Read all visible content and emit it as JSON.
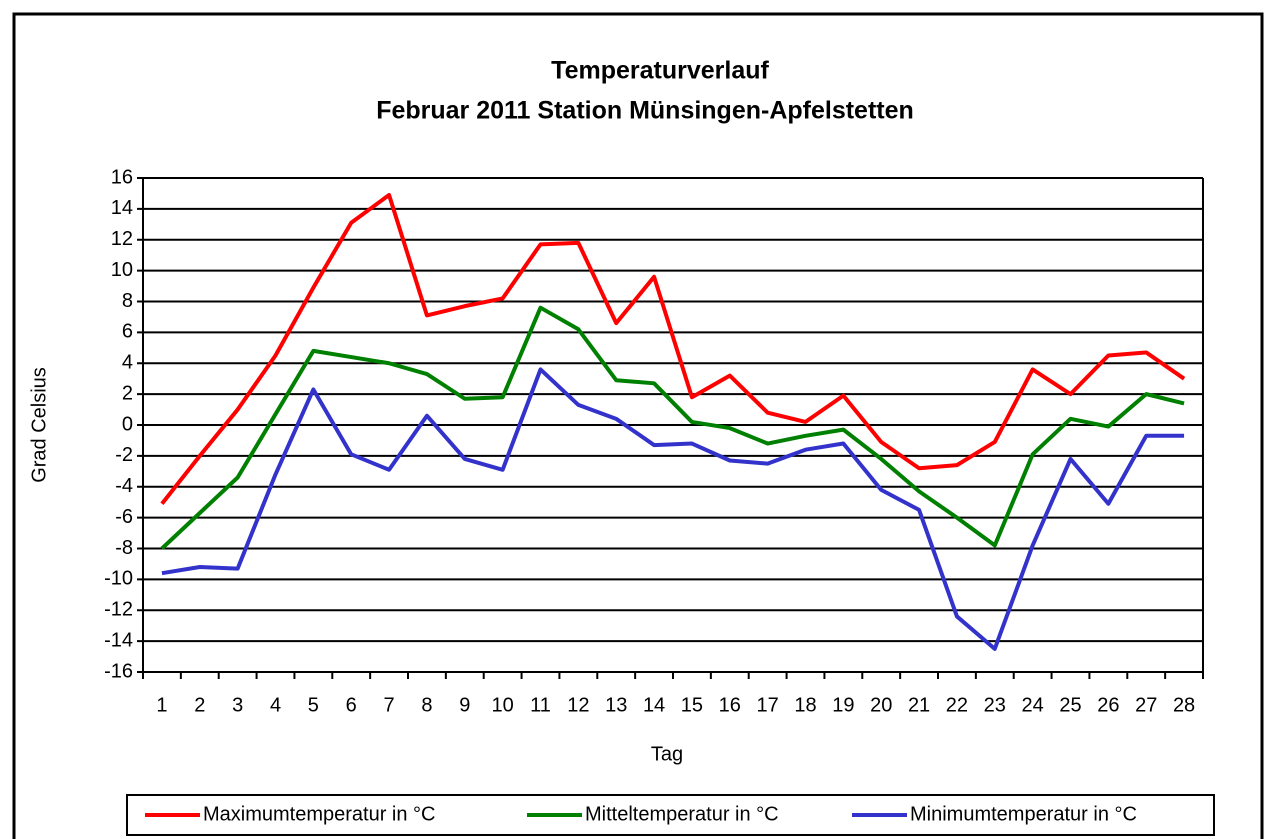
{
  "chart_data": {
    "type": "line",
    "title": "Temperaturverlauf",
    "subtitle": "Februar 2011 Station Münsingen-Apfelstetten",
    "x_label": "Tag",
    "y_label": "Grad Celsius",
    "categories": [
      1,
      2,
      3,
      4,
      5,
      6,
      7,
      8,
      9,
      10,
      11,
      12,
      13,
      14,
      15,
      16,
      17,
      18,
      19,
      20,
      21,
      22,
      23,
      24,
      25,
      26,
      27,
      28
    ],
    "series": [
      {
        "name": "Maximumtemperatur in °C",
        "color": "#ff0000",
        "values": [
          -5.1,
          -2,
          1.0,
          4.5,
          8.9,
          13.1,
          14.9,
          7.1,
          7.7,
          8.2,
          11.7,
          11.8,
          6.6,
          9.6,
          1.8,
          3.2,
          0.8,
          0.2,
          1.9,
          -1.1,
          -2.8,
          -2.6,
          -1.1,
          3.6,
          2.0,
          4.5,
          4.7,
          3.0
        ]
      },
      {
        "name": "Mitteltemperatur in °C",
        "color": "#008000",
        "values": [
          -8.0,
          -5.7,
          -3.4,
          0.7,
          4.8,
          4.4,
          4.0,
          3.3,
          1.7,
          1.8,
          7.6,
          6.2,
          2.9,
          2.7,
          0.2,
          -0.2,
          -1.2,
          -0.7,
          -0.3,
          -2.2,
          -4.3,
          -6.0,
          -7.8,
          -1.9,
          0.4,
          -0.1,
          2.0,
          1.4
        ]
      },
      {
        "name": "Minimumtemperatur in °C",
        "color": "#3333cc",
        "values": [
          -9.6,
          -9.2,
          -9.3,
          -3.2,
          2.3,
          -1.9,
          -2.9,
          0.6,
          -2.2,
          -2.9,
          3.6,
          1.3,
          0.4,
          -1.3,
          -1.2,
          -2.3,
          -2.5,
          -1.6,
          -1.2,
          -4.2,
          -5.5,
          -12.4,
          -14.5,
          -7.8,
          -2.2,
          -5.1,
          -0.7,
          -0.7
        ]
      }
    ],
    "ylim": [
      -16,
      16
    ],
    "yticks": [
      -16,
      -14,
      -12,
      -10,
      -8,
      -6,
      -4,
      -2,
      0,
      2,
      4,
      6,
      8,
      10,
      12,
      14,
      16
    ],
    "grid": true,
    "legend": "bottom"
  }
}
